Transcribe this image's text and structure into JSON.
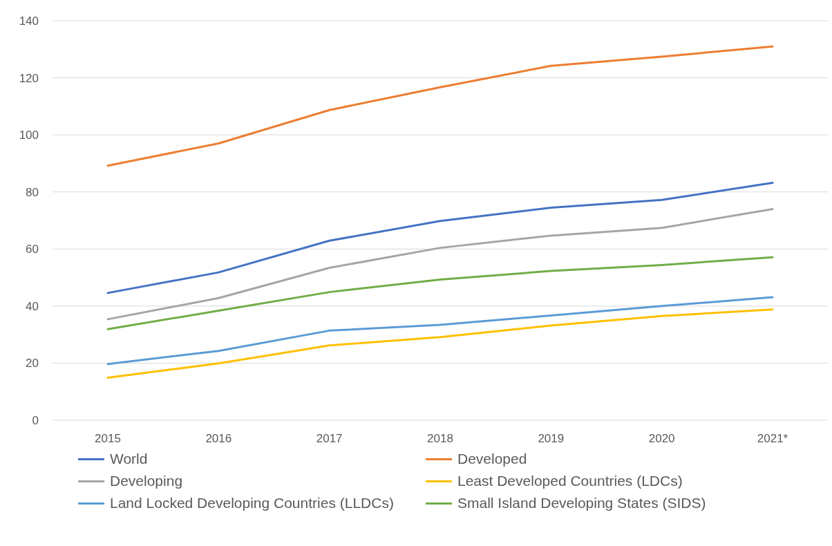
{
  "chart_data": {
    "type": "line",
    "categories": [
      "2015",
      "2016",
      "2017",
      "2018",
      "2019",
      "2020",
      "2021*"
    ],
    "series": [
      {
        "name": "World",
        "color": "#4472c4",
        "values": [
          44.6,
          51.8,
          62.9,
          69.8,
          74.5,
          77.2,
          83.2
        ]
      },
      {
        "name": "Developed",
        "color": "#ed7d31",
        "values": [
          89.2,
          97.0,
          108.7,
          116.7,
          124.2,
          127.4,
          131.0
        ]
      },
      {
        "name": "Developing",
        "color": "#a5a5a5",
        "values": [
          35.4,
          42.8,
          53.4,
          60.4,
          64.7,
          67.4,
          74.0
        ]
      },
      {
        "name": "Least Developed Countries (LDCs)",
        "color": "#ffc000",
        "values": [
          14.9,
          19.9,
          26.2,
          29.1,
          33.2,
          36.5,
          38.8
        ]
      },
      {
        "name": "Land Locked Developing Countries (LLDCs)",
        "color": "#5b9bd5",
        "values": [
          19.7,
          24.3,
          31.4,
          33.4,
          36.7,
          40.0,
          43.1
        ]
      },
      {
        "name": "Small Island Developing States (SIDS)",
        "color": "#70ad47",
        "values": [
          31.9,
          38.4,
          44.9,
          49.3,
          52.3,
          54.4,
          57.1
        ]
      }
    ],
    "ylim": [
      0,
      140
    ],
    "yticks": [
      0,
      20,
      40,
      60,
      80,
      100,
      120,
      140
    ],
    "grid": "y",
    "legend": "bottom",
    "marker": "none",
    "line_style": "solid"
  }
}
